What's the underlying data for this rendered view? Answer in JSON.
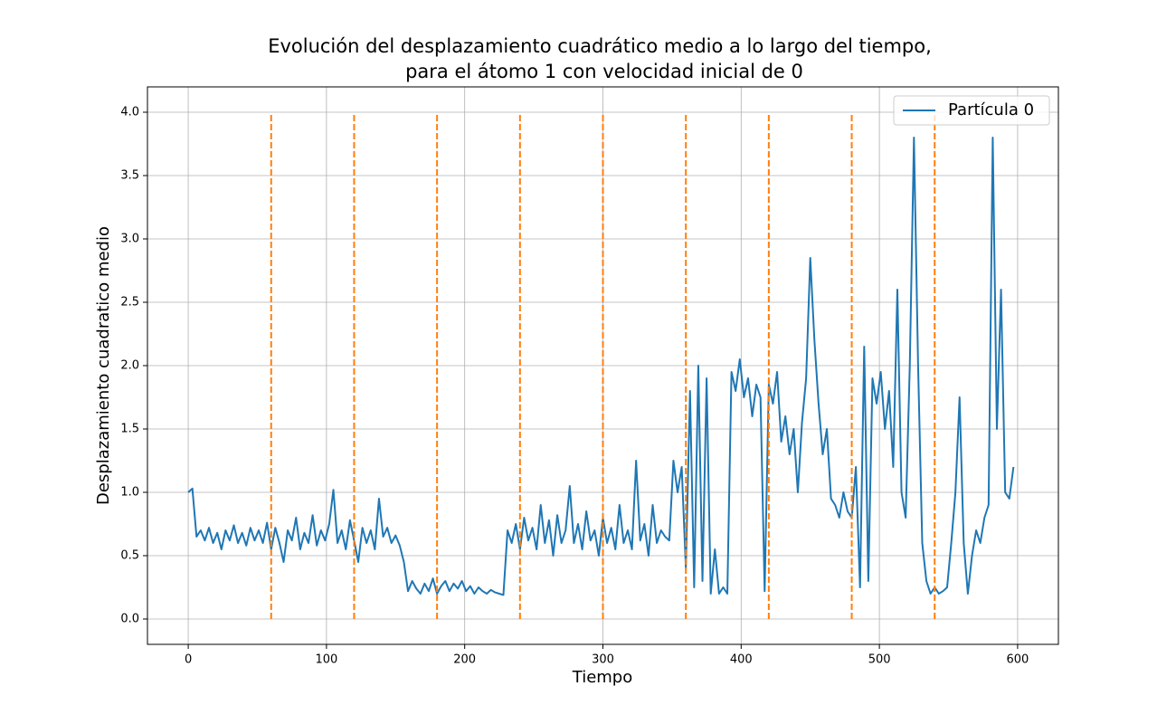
{
  "chart_data": {
    "type": "line",
    "title": "Evolución del desplazamiento cuadrático medio a lo largo del tiempo,",
    "subtitle": "para el átomo 1 con velocidad inicial de 0",
    "xlabel": "Tiempo",
    "ylabel": "Desplazamiento cuadratico medio",
    "x": [
      0,
      3,
      6,
      9,
      12,
      15,
      18,
      21,
      24,
      27,
      30,
      33,
      36,
      39,
      42,
      45,
      48,
      51,
      54,
      57,
      60,
      63,
      66,
      69,
      72,
      75,
      78,
      81,
      84,
      87,
      90,
      93,
      96,
      99,
      102,
      105,
      108,
      111,
      114,
      117,
      120,
      123,
      126,
      129,
      132,
      135,
      138,
      141,
      144,
      147,
      150,
      153,
      156,
      159,
      162,
      165,
      168,
      171,
      174,
      177,
      180,
      183,
      186,
      189,
      192,
      195,
      198,
      201,
      204,
      207,
      210,
      213,
      216,
      219,
      222,
      225,
      228,
      231,
      234,
      237,
      240,
      243,
      246,
      249,
      252,
      255,
      258,
      261,
      264,
      267,
      270,
      273,
      276,
      279,
      282,
      285,
      288,
      291,
      294,
      297,
      300,
      303,
      306,
      309,
      312,
      315,
      318,
      321,
      324,
      327,
      330,
      333,
      336,
      339,
      342,
      345,
      348,
      351,
      354,
      357,
      360,
      363,
      366,
      369,
      372,
      375,
      378,
      381,
      384,
      387,
      390,
      393,
      396,
      399,
      402,
      405,
      408,
      411,
      414,
      417,
      420,
      423,
      426,
      429,
      432,
      435,
      438,
      441,
      444,
      447,
      450,
      453,
      456,
      459,
      462,
      465,
      468,
      471,
      474,
      477,
      480,
      483,
      486,
      489,
      492,
      495,
      498,
      501,
      504,
      507,
      510,
      513,
      516,
      519,
      522,
      525,
      528,
      531,
      534,
      537,
      540,
      543,
      546,
      549,
      552,
      555,
      558,
      561,
      564,
      567,
      570,
      573,
      576,
      579,
      582,
      585,
      588,
      591,
      594,
      597
    ],
    "series": [
      {
        "name": "Partícula 0",
        "color": "#1f77b4",
        "values": [
          1.0,
          1.03,
          0.65,
          0.7,
          0.62,
          0.72,
          0.6,
          0.68,
          0.55,
          0.7,
          0.62,
          0.74,
          0.6,
          0.68,
          0.58,
          0.72,
          0.62,
          0.7,
          0.6,
          0.76,
          0.55,
          0.72,
          0.6,
          0.45,
          0.7,
          0.62,
          0.8,
          0.55,
          0.68,
          0.6,
          0.82,
          0.58,
          0.7,
          0.62,
          0.75,
          1.02,
          0.6,
          0.7,
          0.55,
          0.78,
          0.62,
          0.45,
          0.72,
          0.6,
          0.7,
          0.55,
          0.95,
          0.65,
          0.72,
          0.6,
          0.66,
          0.58,
          0.45,
          0.22,
          0.3,
          0.24,
          0.2,
          0.28,
          0.22,
          0.32,
          0.2,
          0.26,
          0.3,
          0.22,
          0.28,
          0.24,
          0.3,
          0.22,
          0.26,
          0.2,
          0.25,
          0.22,
          0.2,
          0.23,
          0.21,
          0.2,
          0.19,
          0.7,
          0.6,
          0.75,
          0.55,
          0.8,
          0.62,
          0.72,
          0.55,
          0.9,
          0.6,
          0.78,
          0.5,
          0.82,
          0.6,
          0.7,
          1.05,
          0.6,
          0.75,
          0.55,
          0.85,
          0.62,
          0.7,
          0.5,
          0.8,
          0.6,
          0.72,
          0.55,
          0.9,
          0.6,
          0.7,
          0.55,
          1.25,
          0.62,
          0.75,
          0.5,
          0.9,
          0.6,
          0.7,
          0.65,
          0.62,
          1.25,
          1.0,
          1.2,
          0.4,
          1.8,
          0.25,
          2.0,
          0.3,
          1.9,
          0.2,
          0.55,
          0.2,
          0.25,
          0.2,
          1.95,
          1.8,
          2.05,
          1.75,
          1.9,
          1.6,
          1.85,
          1.75,
          0.22,
          1.85,
          1.7,
          1.95,
          1.4,
          1.6,
          1.3,
          1.5,
          1.0,
          1.55,
          1.9,
          2.85,
          2.2,
          1.7,
          1.3,
          1.5,
          0.95,
          0.9,
          0.8,
          1.0,
          0.85,
          0.8,
          1.2,
          0.25,
          2.15,
          0.3,
          1.9,
          1.7,
          1.95,
          1.5,
          1.8,
          1.2,
          2.6,
          1.0,
          0.8,
          2.0,
          3.8,
          2.0,
          0.6,
          0.3,
          0.2,
          0.25,
          0.2,
          0.22,
          0.25,
          0.6,
          1.0,
          1.75,
          0.6,
          0.2,
          0.5,
          0.7,
          0.6,
          0.8,
          0.9,
          3.8,
          1.5,
          2.6,
          1.0,
          0.95,
          1.2
        ]
      }
    ],
    "vlines": {
      "x": [
        60,
        120,
        180,
        240,
        300,
        360,
        420,
        480,
        540
      ],
      "ymin": 0,
      "ymax": 4,
      "color": "#ff7f0e",
      "dashed": true
    },
    "xlim": [
      -29.5,
      629.5
    ],
    "ylim": [
      -0.2,
      4.2
    ],
    "xticks": [
      0,
      100,
      200,
      300,
      400,
      500,
      600
    ],
    "yticks": [
      {
        "value": 0,
        "label": "0.0"
      },
      0.5,
      {
        "value": 1,
        "label": "1.0"
      },
      1.5,
      {
        "value": 2,
        "label": "2.0"
      },
      2.5,
      {
        "value": 3,
        "label": "3.0"
      },
      3.5,
      {
        "value": 4,
        "label": "4.0"
      }
    ],
    "grid": true,
    "legend": "upper right"
  }
}
